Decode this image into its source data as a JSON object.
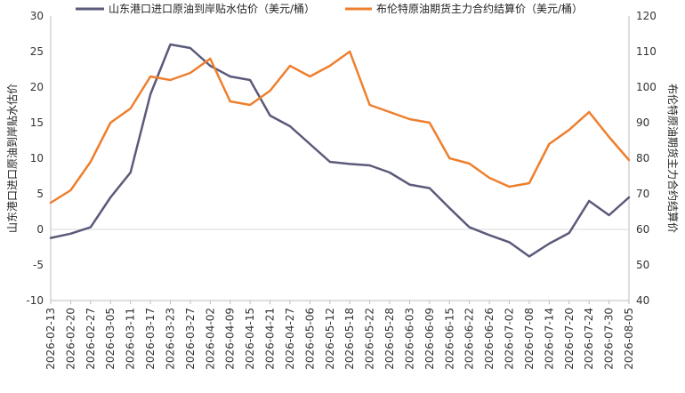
{
  "chart_data": {
    "type": "line",
    "title": "",
    "legend_position": "top",
    "grid": false,
    "x": [
      "2026-02-13",
      "2026-02-20",
      "2026-02-27",
      "2026-03-05",
      "2026-03-11",
      "2026-03-17",
      "2026-03-23",
      "2026-03-27",
      "2026-04-02",
      "2026-04-09",
      "2026-04-15",
      "2026-04-21",
      "2026-04-27",
      "2026-05-06",
      "2026-05-12",
      "2026-05-18",
      "2026-05-22",
      "2026-05-28",
      "2026-06-03",
      "2026-06-09",
      "2026-06-15",
      "2026-06-22",
      "2026-06-26",
      "2026-07-02",
      "2026-07-08",
      "2026-07-14",
      "2026-07-20",
      "2026-07-24",
      "2026-07-30",
      "2026-08-05"
    ],
    "xlabel": "",
    "y_left": {
      "label": "山东港口进口原油到岸贴水估价",
      "range": [
        -10,
        30
      ],
      "ticks": [
        -10,
        -5,
        0,
        5,
        10,
        15,
        20,
        25,
        30
      ]
    },
    "y_right": {
      "label": "布伦特原油期货主力合约结算价",
      "range": [
        40,
        120
      ],
      "ticks": [
        40,
        50,
        60,
        70,
        80,
        90,
        100,
        110,
        120
      ]
    },
    "series": [
      {
        "name": "山东港口进口原油到岸贴水估价（美元/桶）",
        "axis": "left",
        "color": "#5a5a7a",
        "values": [
          -1.2,
          -0.6,
          0.3,
          4.5,
          8.0,
          19.0,
          26.0,
          25.5,
          23.0,
          21.5,
          21.0,
          16.0,
          14.5,
          12.0,
          9.5,
          9.2,
          9.0,
          8.0,
          6.3,
          5.8,
          3.0,
          0.3,
          -0.8,
          -1.8,
          -3.8,
          -2.0,
          -0.5,
          4.0,
          2.0,
          4.5
        ]
      },
      {
        "name": "布伦特原油期货主力合约结算价（美元/桶）",
        "axis": "right",
        "color": "#ee7f2d",
        "values": [
          67.5,
          71.0,
          79.0,
          90.0,
          94.0,
          103.0,
          102.0,
          104.0,
          108.0,
          96.0,
          95.0,
          99.0,
          106.0,
          103.0,
          106.0,
          110.0,
          95.0,
          93.0,
          91.0,
          90.0,
          80.0,
          78.5,
          74.5,
          72.0,
          73.0,
          84.0,
          88.0,
          93.0,
          86.0,
          79.5
        ]
      }
    ]
  }
}
